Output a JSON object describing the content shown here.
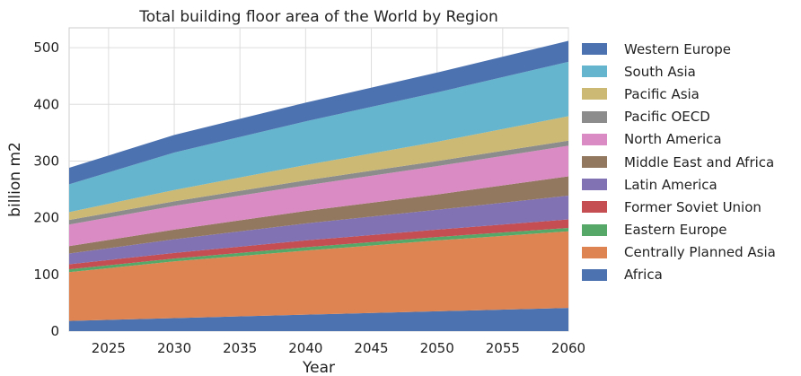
{
  "chart_data": {
    "type": "area",
    "stacked": true,
    "title": "Total building floor area of the World by Region",
    "xlabel": "Year",
    "ylabel": "billion m2",
    "xlim": [
      2022,
      2060
    ],
    "ylim": [
      0,
      535
    ],
    "xticks": [
      2025,
      2030,
      2035,
      2040,
      2045,
      2050,
      2055,
      2060
    ],
    "yticks": [
      0,
      100,
      200,
      300,
      400,
      500
    ],
    "grid": true,
    "legend_position": "outside-right",
    "x": [
      2022,
      2030,
      2040,
      2050,
      2060
    ],
    "series": [
      {
        "name": "Africa",
        "color": "#4c72b0",
        "values": [
          18,
          23,
          29,
          35,
          41
        ]
      },
      {
        "name": "Centrally Planned Asia",
        "color": "#dd8452",
        "values": [
          86,
          100,
          113,
          125,
          135
        ]
      },
      {
        "name": "Eastern Europe",
        "color": "#55a868",
        "values": [
          5,
          5,
          6,
          6,
          6
        ]
      },
      {
        "name": "Former Soviet Union",
        "color": "#c44e52",
        "values": [
          9,
          10,
          12,
          13,
          15
        ]
      },
      {
        "name": "Latin America",
        "color": "#8172b3",
        "values": [
          19,
          24,
          30,
          35,
          42
        ]
      },
      {
        "name": "Middle East and Africa",
        "color": "#937860",
        "values": [
          13,
          17,
          22,
          27,
          34
        ]
      },
      {
        "name": "North America",
        "color": "#da8bc3",
        "values": [
          38,
          42,
          45,
          50,
          54
        ]
      },
      {
        "name": "Pacific OECD",
        "color": "#8c8c8c",
        "values": [
          8,
          8,
          9,
          9,
          9
        ]
      },
      {
        "name": "Pacific Asia",
        "color": "#ccb974",
        "values": [
          14,
          20,
          27,
          34,
          43
        ]
      },
      {
        "name": "South Asia",
        "color": "#64b5cd",
        "values": [
          49,
          66,
          77,
          87,
          96
        ]
      },
      {
        "name": "Western Europe",
        "color": "#4c72b0",
        "values": [
          29,
          31,
          33,
          35,
          37
        ]
      }
    ]
  },
  "legend": {
    "items": [
      {
        "label": "Western Europe",
        "color": "#4c72b0"
      },
      {
        "label": "South Asia",
        "color": "#64b5cd"
      },
      {
        "label": "Pacific Asia",
        "color": "#ccb974"
      },
      {
        "label": "Pacific OECD",
        "color": "#8c8c8c"
      },
      {
        "label": "North America",
        "color": "#da8bc3"
      },
      {
        "label": "Middle East and Africa",
        "color": "#937860"
      },
      {
        "label": "Latin America",
        "color": "#8172b3"
      },
      {
        "label": "Former Soviet Union",
        "color": "#c44e52"
      },
      {
        "label": "Eastern Europe",
        "color": "#55a868"
      },
      {
        "label": "Centrally Planned Asia",
        "color": "#dd8452"
      },
      {
        "label": "Africa",
        "color": "#4c72b0"
      }
    ]
  }
}
